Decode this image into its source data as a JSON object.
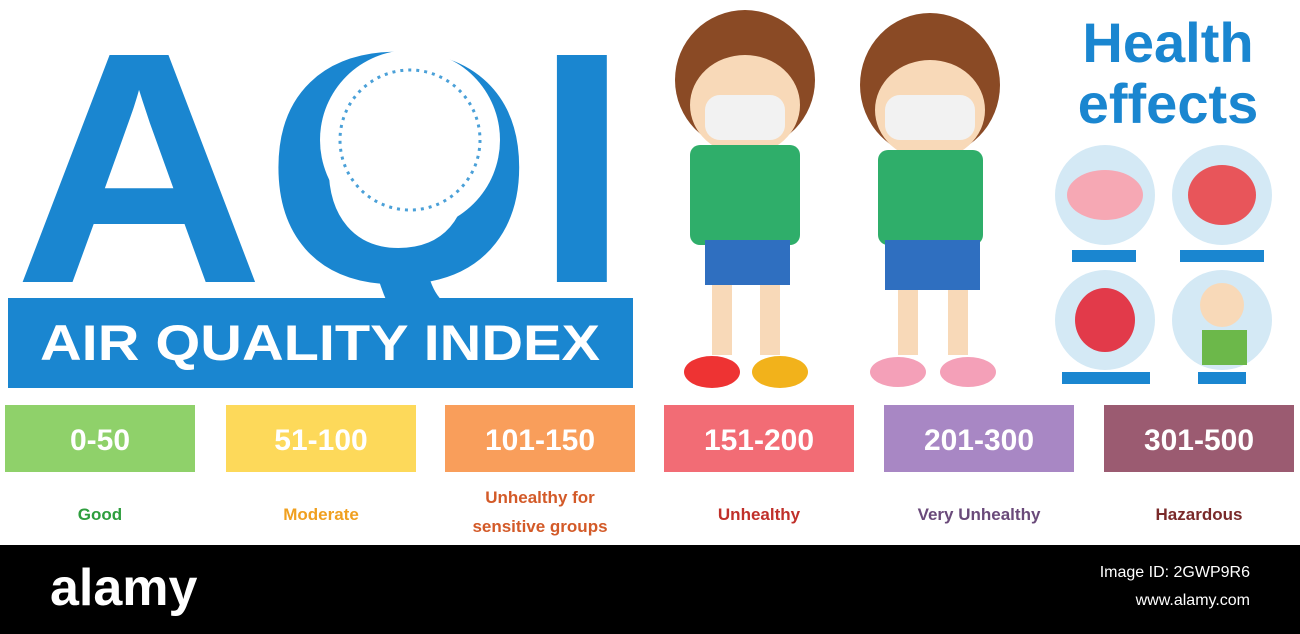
{
  "header": {
    "title": "AQI",
    "subtitle": "AIR QUALITY INDEX",
    "color": "#1a86d0"
  },
  "health": {
    "title": "Health effects"
  },
  "levels": [
    {
      "range": "0-50",
      "label": "Good",
      "color": "#8fd16a",
      "text_color": "#2e9e3e"
    },
    {
      "range": "51-100",
      "label": "Moderate",
      "color": "#fdd95a",
      "text_color": "#f0a020"
    },
    {
      "range": "101-150",
      "label": "Unhealthy for sensitive groups",
      "color": "#f99e5b",
      "text_color": "#d35a28"
    },
    {
      "range": "151-200",
      "label": "Unhealthy",
      "color": "#f26c75",
      "text_color": "#c0302a"
    },
    {
      "range": "201-300",
      "label": "Very Unhealthy",
      "color": "#a887c4",
      "text_color": "#6a4a7a"
    },
    {
      "range": "301-500",
      "label": "Hazardous",
      "color": "#9b5b71",
      "text_color": "#7a2a2a"
    }
  ],
  "footer": {
    "brand": "alamy",
    "image_id": "Image ID: 2GWP9R6",
    "url": "www.alamy.com"
  }
}
